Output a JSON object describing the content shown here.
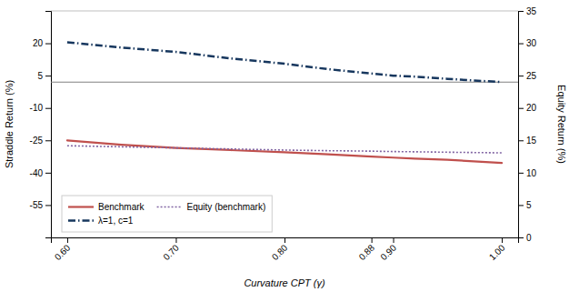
{
  "chart_data": {
    "type": "line",
    "x": [
      0.6,
      0.65,
      0.7,
      0.75,
      0.8,
      0.84,
      0.88,
      0.9,
      0.92,
      0.95,
      1.0
    ],
    "series": [
      {
        "name": "Benchmark",
        "color": "#c0504d",
        "line_style": "solid",
        "values": [
          -25.0,
          -27.0,
          -28.5,
          -29.5,
          -30.5,
          -31.5,
          -32.5,
          -33.0,
          -33.5,
          -34.0,
          -35.5
        ]
      },
      {
        "name": "λ=1, c=1",
        "color": "#17375e",
        "line_style": "dashdot",
        "values": [
          20.5,
          18.0,
          16.0,
          13.0,
          10.5,
          8.0,
          6.0,
          5.0,
          4.5,
          3.5,
          2.0
        ]
      },
      {
        "name": "Equity (benchmark)",
        "color": "#8064a2",
        "line_style": "dotted",
        "values": [
          -27.5,
          -28.0,
          -28.5,
          -29.0,
          -29.5,
          -29.8,
          -30.0,
          -30.2,
          -30.3,
          -30.5,
          -30.8
        ]
      }
    ],
    "reference_line": {
      "value": 2.0,
      "color": "#808080"
    },
    "xlim": [
      0.585,
      1.015
    ],
    "xticks": [
      {
        "value": 0.6,
        "label": "0.60"
      },
      {
        "value": 0.7,
        "label": "0.70"
      },
      {
        "value": 0.8,
        "label": "0.80"
      },
      0.88,
      {
        "value": 0.9,
        "label": "0.90"
      },
      {
        "value": 1.0,
        "label": "1.00"
      }
    ],
    "ylim": [
      -70,
      35
    ],
    "yticks": [
      -55,
      -40,
      -25,
      -10,
      5,
      20
    ],
    "y2lim": [
      0,
      35
    ],
    "y2ticks": [
      0,
      5,
      10,
      15,
      20,
      25,
      30,
      35
    ],
    "xlabel": "Curvature CPT (γ)",
    "ylabel": "Straddle Return (%)",
    "y2label": "Equity Return (%)",
    "legend": "lower left",
    "grid": false
  }
}
